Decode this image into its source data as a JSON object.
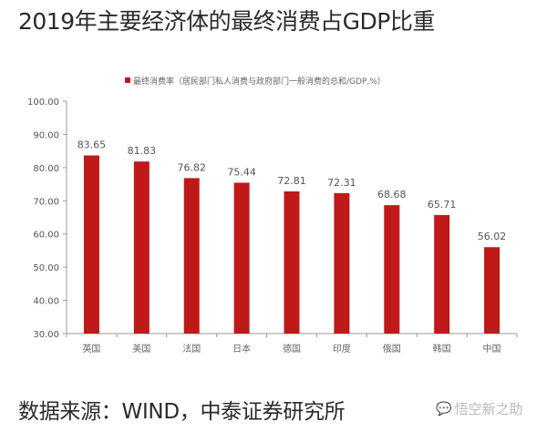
{
  "title": "2019年主要经济体的最终消费占GDP比重",
  "source": "数据来源：WIND，中泰证券研究所",
  "watermark": {
    "icon": "wechat-icon",
    "text": "悟空新之助"
  },
  "colors": {
    "bar": "#c0191a",
    "axis": "#9a9a9a",
    "text": "#2a2a2a"
  },
  "chart_data": {
    "type": "bar",
    "title": "2019年主要经济体的最终消费占GDP比重",
    "legend": {
      "entries": [
        "最终消费率（居民部门私人消费与政府部门一般消费的总和/GDP,%）"
      ],
      "placement": "top"
    },
    "categories": [
      "英国",
      "美国",
      "法国",
      "日本",
      "德国",
      "印度",
      "俄国",
      "韩国",
      "中国"
    ],
    "series": [
      {
        "name": "最终消费率（居民部门私人消费与政府部门一般消费的总和/GDP,%）",
        "values": [
          83.65,
          81.83,
          76.82,
          75.44,
          72.81,
          72.31,
          68.68,
          65.71,
          56.02
        ],
        "labels": [
          "83.65",
          "81.83",
          "76.82",
          "75.44",
          "72.81",
          "72.31",
          "68.68",
          "65.71",
          "56.02"
        ]
      }
    ],
    "ylim": [
      30,
      100
    ],
    "yticks": [
      "30.00",
      "40.00",
      "50.00",
      "60.00",
      "70.00",
      "80.00",
      "90.00",
      "100.00"
    ],
    "ytick_values": [
      30,
      40,
      50,
      60,
      70,
      80,
      90,
      100
    ],
    "xlabel": "",
    "ylabel": "",
    "grid": false
  }
}
